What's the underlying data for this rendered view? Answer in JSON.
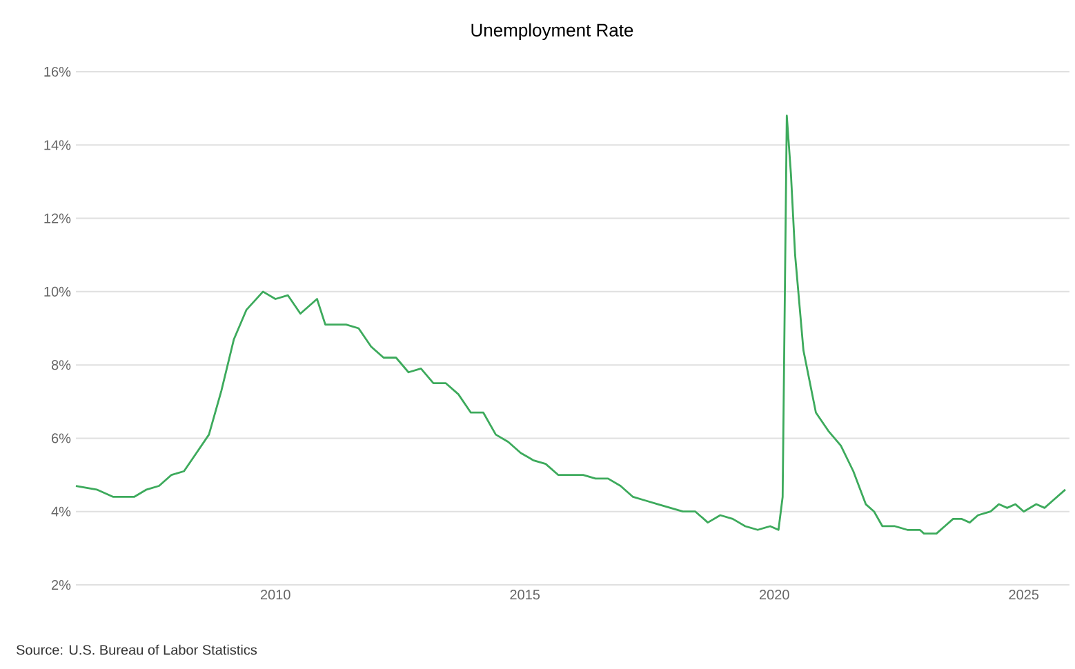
{
  "chart_data": {
    "type": "line",
    "title": "Unemployment Rate",
    "annotations": [
      "Source: U.S. Bureau of Labor Statistics"
    ],
    "x": [
      "2006-01",
      "2006-06",
      "2006-10",
      "2007-03",
      "2007-06",
      "2007-09",
      "2007-12",
      "2008-03",
      "2008-06",
      "2008-09",
      "2008-12",
      "2009-03",
      "2009-06",
      "2009-10",
      "2010-01",
      "2010-04",
      "2010-07",
      "2010-11",
      "2011-01",
      "2011-06",
      "2011-09",
      "2011-12",
      "2012-03",
      "2012-06",
      "2012-09",
      "2012-12",
      "2013-03",
      "2013-06",
      "2013-09",
      "2013-12",
      "2014-03",
      "2014-06",
      "2014-09",
      "2014-12",
      "2015-03",
      "2015-06",
      "2015-09",
      "2015-12",
      "2016-03",
      "2016-06",
      "2016-09",
      "2016-12",
      "2017-03",
      "2017-06",
      "2017-09",
      "2017-12",
      "2018-03",
      "2018-06",
      "2018-09",
      "2018-12",
      "2019-03",
      "2019-06",
      "2019-09",
      "2019-12",
      "2020-02",
      "2020-03",
      "2020-04",
      "2020-05",
      "2020-06",
      "2020-08",
      "2020-11",
      "2021-02",
      "2021-05",
      "2021-08",
      "2021-11",
      "2022-01",
      "2022-03",
      "2022-06",
      "2022-09",
      "2022-12",
      "2023-01",
      "2023-04",
      "2023-06",
      "2023-08",
      "2023-10",
      "2023-12",
      "2024-02",
      "2024-05",
      "2024-07",
      "2024-09",
      "2024-11",
      "2025-01",
      "2025-04",
      "2025-06",
      "2025-08",
      "2025-11"
    ],
    "series": [
      {
        "color": "#3daa5c",
        "values": [
          4.7,
          4.6,
          4.4,
          4.4,
          4.6,
          4.7,
          5.0,
          5.1,
          5.6,
          6.1,
          7.3,
          8.7,
          9.5,
          10.0,
          9.8,
          9.9,
          9.4,
          9.8,
          9.1,
          9.1,
          9.0,
          8.5,
          8.2,
          8.2,
          7.8,
          7.9,
          7.5,
          7.5,
          7.2,
          6.7,
          6.7,
          6.1,
          5.9,
          5.6,
          5.4,
          5.3,
          5.0,
          5.0,
          5.0,
          4.9,
          4.9,
          4.7,
          4.4,
          4.3,
          4.2,
          4.1,
          4.0,
          4.0,
          3.7,
          3.9,
          3.8,
          3.6,
          3.5,
          3.6,
          3.5,
          4.4,
          14.8,
          13.2,
          11.0,
          8.4,
          6.7,
          6.2,
          5.8,
          5.1,
          4.2,
          4.0,
          3.6,
          3.6,
          3.5,
          3.5,
          3.4,
          3.4,
          3.6,
          3.8,
          3.8,
          3.7,
          3.9,
          4.0,
          4.2,
          4.1,
          4.2,
          4.0,
          4.2,
          4.1,
          4.3,
          4.6
        ]
      }
    ],
    "xlim": [
      "2006-01",
      "2025-12"
    ],
    "xticks": [
      {
        "value": "2010-01",
        "label": "2010"
      },
      {
        "value": "2015-01",
        "label": "2015"
      },
      {
        "value": "2020-01",
        "label": "2020"
      },
      {
        "value": "2025-01",
        "label": "2025"
      }
    ],
    "ylim": [
      2,
      16
    ],
    "yticks": [
      {
        "value": 2,
        "label": "2%"
      },
      {
        "value": 4,
        "label": "4%"
      },
      {
        "value": 6,
        "label": "6%"
      },
      {
        "value": 8,
        "label": "8%"
      },
      {
        "value": 10,
        "label": "10%"
      },
      {
        "value": 12,
        "label": "12%"
      },
      {
        "value": 14,
        "label": "14%"
      },
      {
        "value": 16,
        "label": "16%"
      }
    ],
    "grid": "y",
    "marker": "none",
    "line_style": "solid"
  }
}
